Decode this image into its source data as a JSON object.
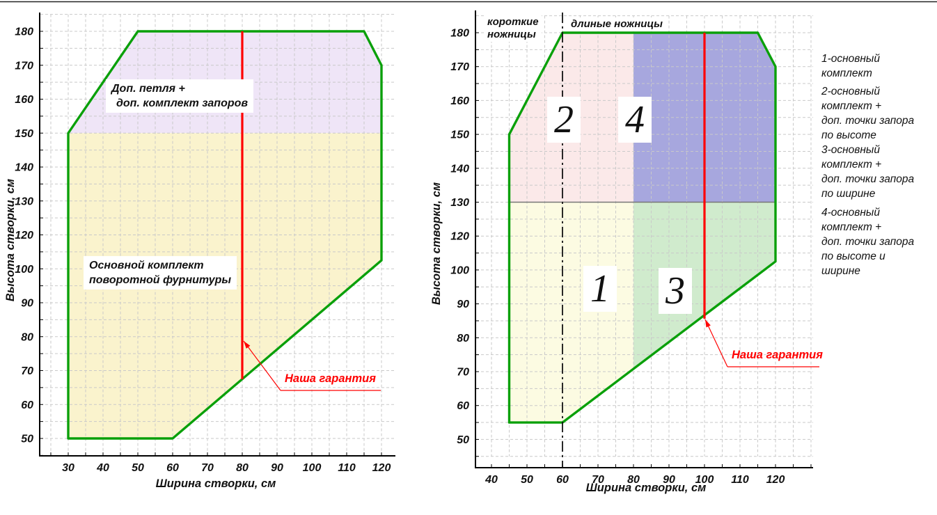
{
  "colors": {
    "outline_green": "#0AA00A",
    "guarantee_red": "#FF0000",
    "grid": "#C9C9C9",
    "axis": "#000000",
    "divider_gray": "#777777",
    "region_purple": "#EFE5F7",
    "region_yellow": "#FAF3CD",
    "region_pale_yellow": "#FCFBE2",
    "region_pink": "#FBE9E9",
    "region_blue": "#A7A7DE",
    "region_green": "#D0EBCD",
    "label_bg": "#FFFFFF"
  },
  "chart_data": [
    {
      "type": "area",
      "title": "",
      "xlabel": "Ширина створки, см",
      "ylabel": "Высота створки, см",
      "xlim": [
        30,
        120
      ],
      "ylim": [
        50,
        180
      ],
      "grid": true,
      "x_ticks": [
        30,
        40,
        50,
        60,
        70,
        80,
        90,
        100,
        110,
        120
      ],
      "y_tick_labels": [
        "180",
        "170",
        "160",
        "150",
        "140",
        "130",
        "120",
        "100",
        "90",
        "80",
        "70",
        "60",
        "50"
      ],
      "outline_points": [
        [
          30,
          150
        ],
        [
          50,
          180
        ],
        [
          115,
          180
        ],
        [
          120,
          170
        ],
        [
          120,
          105
        ],
        [
          60,
          50
        ],
        [
          30,
          50
        ]
      ],
      "regions": [
        {
          "name": "dop-petlya",
          "color_key": "region_purple",
          "label_lines": [
            "Доп. петля +",
            "доп. комплект запоров"
          ],
          "points": [
            [
              30,
              150
            ],
            [
              50,
              180
            ],
            [
              115,
              180
            ],
            [
              120,
              170
            ],
            [
              120,
              150
            ]
          ]
        },
        {
          "name": "osnovnoy-komplekt",
          "color_key": "region_yellow",
          "label_lines": [
            "Основной комплект",
            "поворотной фурнитуры"
          ],
          "points": [
            [
              30,
              150
            ],
            [
              120,
              150
            ],
            [
              120,
              105
            ],
            [
              60,
              50
            ],
            [
              30,
              50
            ]
          ]
        }
      ],
      "guarantee": {
        "x": 80,
        "y_top": 180,
        "y_bottom": 67.5,
        "label": "Наша гарантия"
      }
    },
    {
      "type": "area",
      "title": "",
      "xlabel": "Ширина створки, см",
      "ylabel": "Высота створки, см",
      "xlim": [
        40,
        120
      ],
      "ylim": [
        50,
        180
      ],
      "grid": true,
      "x_ticks": [
        40,
        50,
        60,
        70,
        80,
        90,
        100,
        110,
        120
      ],
      "y_tick_labels": [
        "180",
        "170",
        "160",
        "150",
        "140",
        "130",
        "120",
        "100",
        "90",
        "80",
        "70",
        "60",
        "50"
      ],
      "outline_points": [
        [
          45,
          150
        ],
        [
          60,
          180
        ],
        [
          115,
          180
        ],
        [
          120,
          170
        ],
        [
          120,
          105
        ],
        [
          60,
          55
        ],
        [
          45,
          55
        ]
      ],
      "scissors_divider_x": 60,
      "divider_y": 130,
      "divider_x_range": [
        45,
        120
      ],
      "top_labels": [
        [
          "короткие",
          "ножницы"
        ],
        [
          "длиные ножницы"
        ]
      ],
      "regions": [
        {
          "number": "1",
          "color_key": "region_pale_yellow",
          "points": [
            [
              45,
              130
            ],
            [
              80,
              130
            ],
            [
              80,
              70.8
            ],
            [
              60,
              55
            ],
            [
              45,
              55
            ]
          ]
        },
        {
          "number": "2",
          "color_key": "region_pink",
          "points": [
            [
              45,
              130
            ],
            [
              45,
              150
            ],
            [
              60,
              180
            ],
            [
              80,
              180
            ],
            [
              80,
              130
            ]
          ]
        },
        {
          "number": "3",
          "color_key": "region_green",
          "points": [
            [
              80,
              130
            ],
            [
              120,
              130
            ],
            [
              120,
              105
            ],
            [
              80,
              70.8
            ]
          ]
        },
        {
          "number": "4",
          "color_key": "region_blue",
          "points": [
            [
              80,
              130
            ],
            [
              80,
              180
            ],
            [
              115,
              180
            ],
            [
              120,
              170
            ],
            [
              120,
              130
            ]
          ]
        }
      ],
      "guarantee": {
        "x": 100,
        "y_top": 180,
        "y_bottom": 85.6,
        "label": "Наша гарантия"
      }
    }
  ],
  "legend": {
    "items": [
      {
        "lines": [
          "1-основный",
          "комплект"
        ]
      },
      {
        "lines": [
          "2-основный",
          "комплект +",
          "доп. точки запора",
          "по высоте"
        ]
      },
      {
        "lines": [
          "3-основный",
          "комплект +",
          "доп. точки запора",
          "по ширине"
        ]
      },
      {
        "lines": [
          "4-основный",
          "комплект +",
          "доп. точки запора",
          "по высоте и",
          "ширине"
        ]
      }
    ]
  }
}
